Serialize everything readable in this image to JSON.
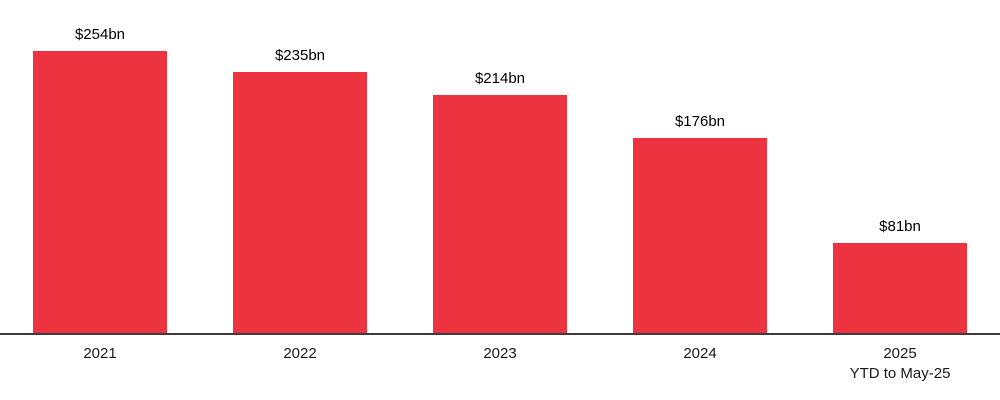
{
  "chart_data": {
    "type": "bar",
    "categories": [
      "2021",
      "2022",
      "2023",
      "2024",
      "2025"
    ],
    "category_sublabels": [
      "",
      "",
      "",
      "",
      "YTD to May-25"
    ],
    "values": [
      254,
      235,
      214,
      176,
      81
    ],
    "value_labels": [
      "$254bn",
      "$235bn",
      "$214bn",
      "$176bn",
      "$81bn"
    ],
    "value_unit": "$bn",
    "title": "",
    "xlabel": "",
    "ylabel": "",
    "ylim": [
      0,
      254
    ],
    "grid": false,
    "legend": false,
    "bar_color": "#EE3340",
    "axis_line_color": "#3d3d3d",
    "label_color": "#000000"
  }
}
